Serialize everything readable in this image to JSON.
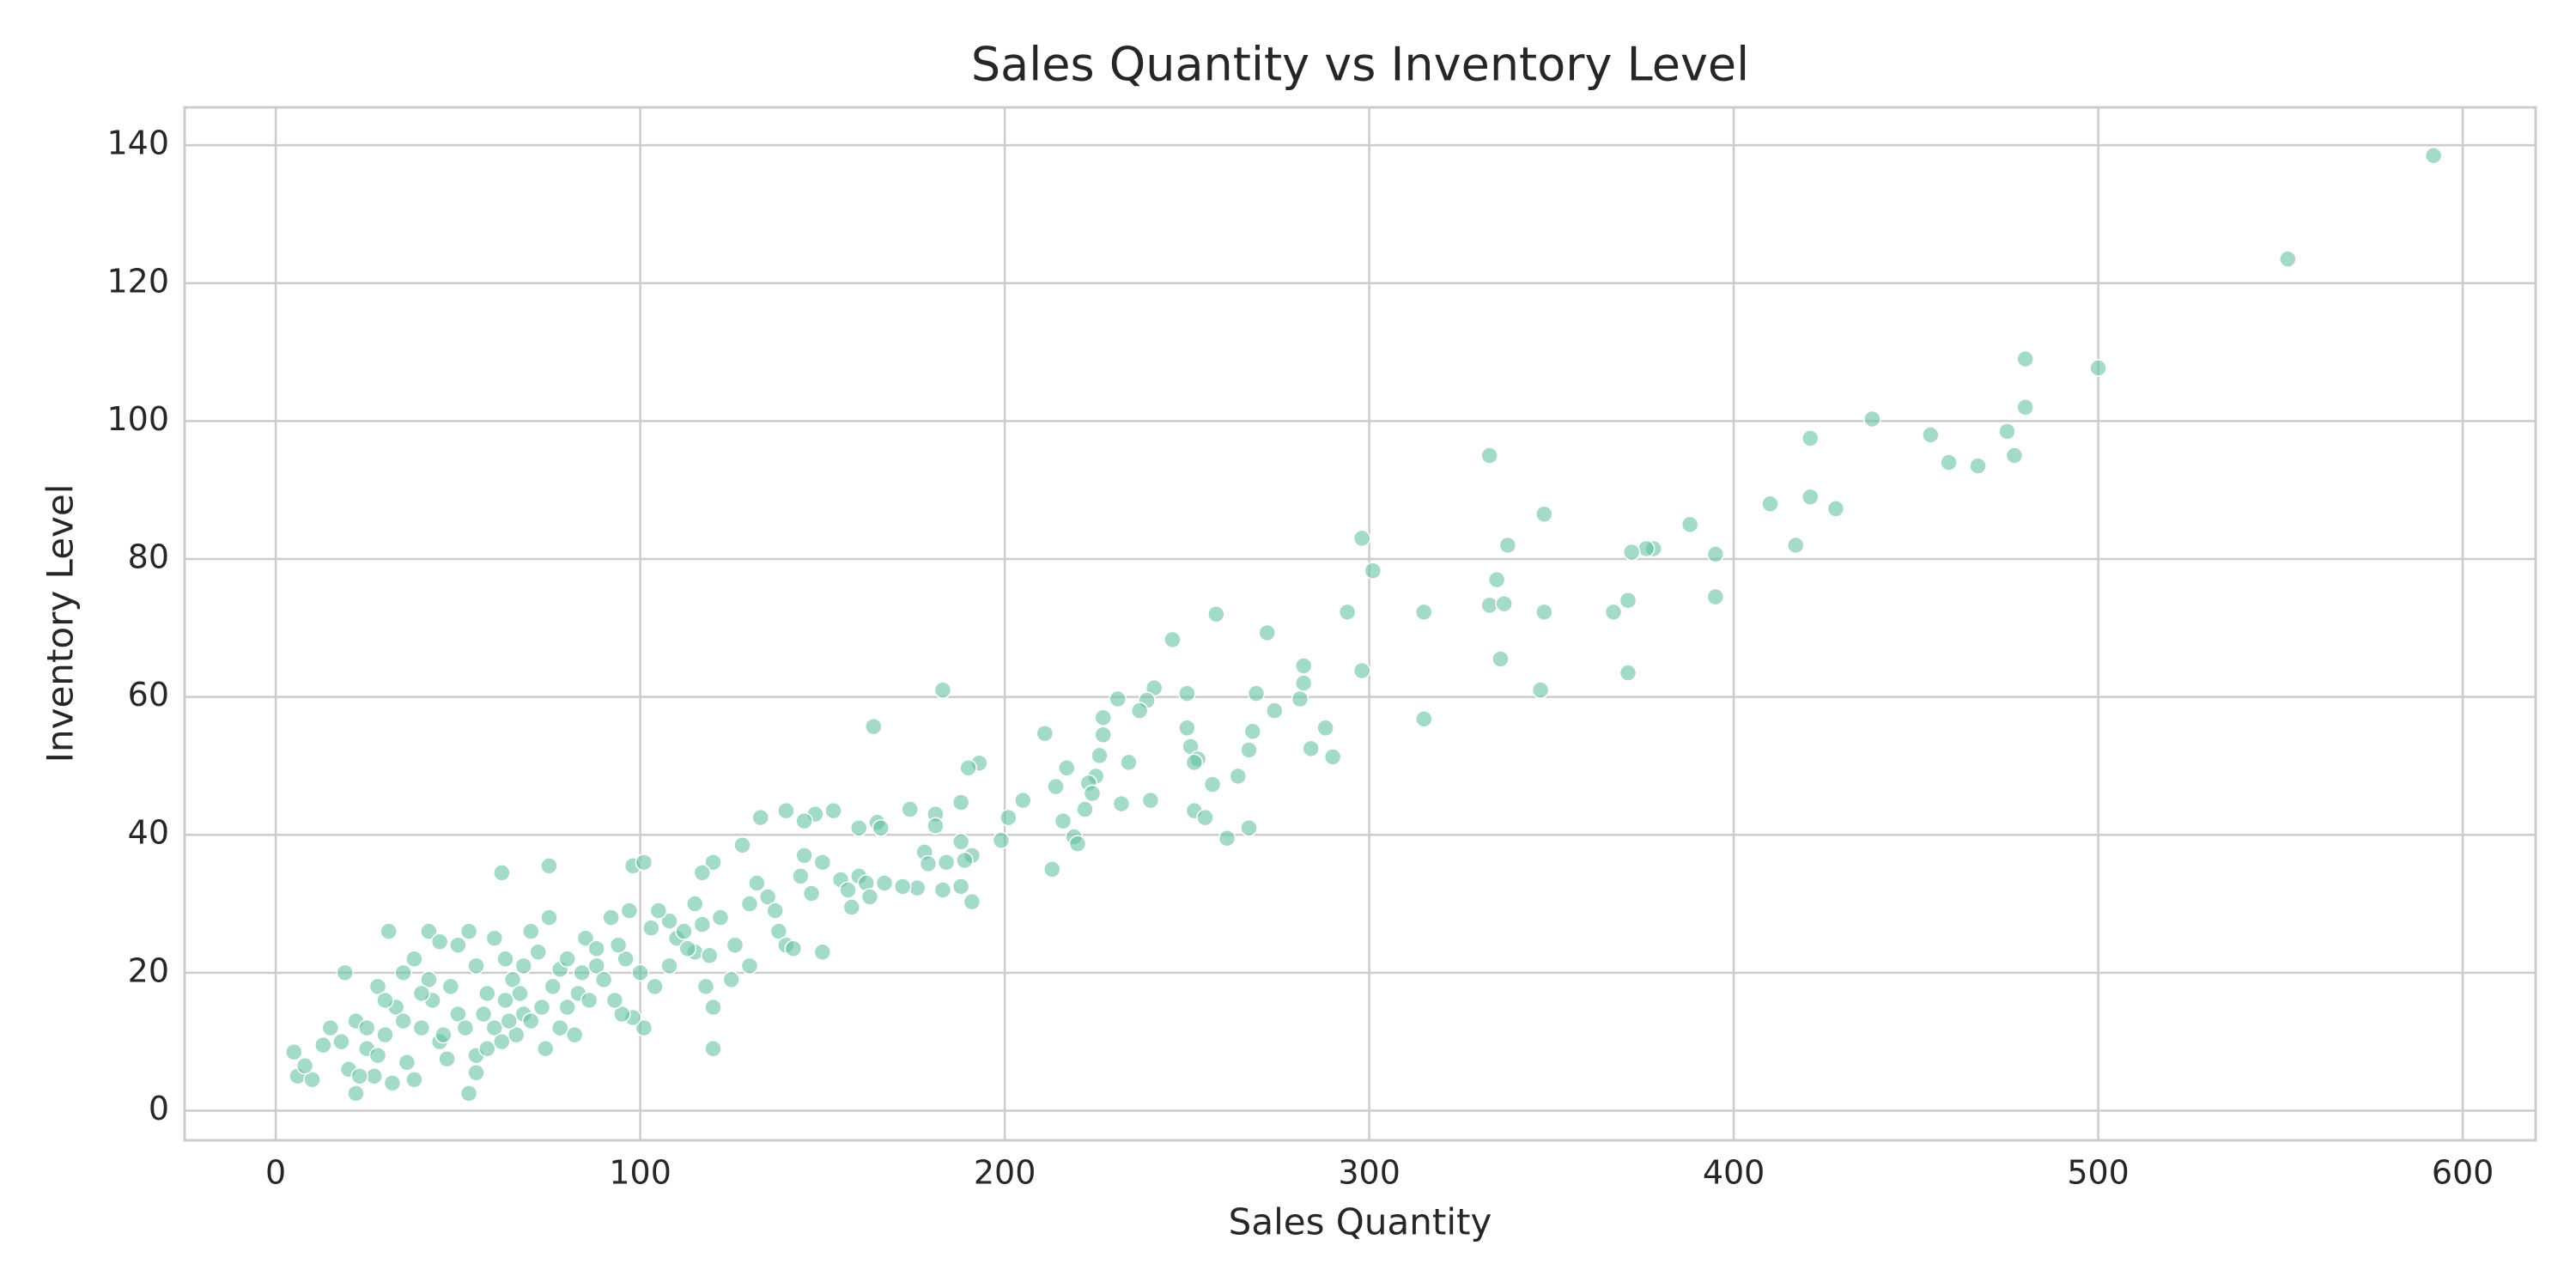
{
  "chart_data": {
    "type": "scatter",
    "title": "Sales Quantity vs Inventory Level",
    "x_label": "Sales Quantity",
    "y_label": "Inventory Level",
    "color": "#66c2a5",
    "grid": true,
    "xlim": [
      -25,
      620
    ],
    "ylim": [
      -4.3,
      145.5
    ],
    "xticks": [
      0,
      100,
      200,
      300,
      400,
      500,
      600
    ],
    "yticks": [
      0,
      20,
      40,
      60,
      80,
      100,
      120,
      140
    ],
    "x": [
      592,
      552,
      500,
      480,
      480,
      475,
      477,
      467,
      459,
      454,
      438,
      421,
      421,
      428,
      417,
      410,
      388,
      395,
      395,
      378,
      376,
      372,
      371,
      367,
      371,
      348,
      348,
      347,
      338,
      335,
      333,
      337,
      336,
      333,
      315,
      315,
      298,
      301,
      294,
      298,
      282,
      282,
      281,
      288,
      284,
      290,
      272,
      258,
      269,
      274,
      268,
      267,
      264,
      267,
      261,
      246,
      241,
      239,
      237,
      250,
      250,
      251,
      253,
      252,
      257,
      252,
      255,
      240,
      231,
      227,
      227,
      234,
      226,
      225,
      223,
      224,
      222,
      232,
      219,
      220,
      216,
      211,
      217,
      214,
      213,
      205,
      201,
      199,
      193,
      190,
      183,
      164,
      188,
      181,
      181,
      174,
      165,
      166,
      191,
      188,
      178,
      184,
      179,
      189,
      191,
      188,
      183,
      176,
      62,
      75,
      98,
      101,
      19,
      31,
      42,
      53,
      120,
      120,
      5,
      6,
      10,
      8,
      22,
      140,
      148,
      153,
      133,
      145,
      128,
      120,
      117,
      145,
      147,
      150,
      155,
      158,
      160,
      162,
      157,
      130,
      135,
      138,
      140,
      142,
      130,
      125,
      118,
      115,
      110,
      108,
      105,
      103,
      101,
      98,
      95,
      100,
      96,
      92,
      88,
      85,
      83,
      80,
      78,
      75,
      72,
      70,
      68,
      65,
      63,
      60,
      58,
      55,
      53,
      50,
      48,
      45,
      43,
      40,
      38,
      36,
      33,
      30,
      28,
      25,
      22,
      18,
      15,
      13,
      27,
      32,
      38,
      45,
      50,
      55,
      58,
      62,
      66,
      70,
      74,
      78,
      82,
      86,
      90,
      94,
      97,
      55,
      47,
      35,
      42,
      60,
      67,
      73,
      80,
      88,
      112,
      122,
      126,
      132,
      137,
      144,
      150,
      115,
      108,
      104,
      93,
      20,
      25,
      30,
      35,
      40,
      52,
      57,
      63,
      68,
      76,
      84,
      64,
      46,
      28,
      23,
      117,
      119,
      113,
      160,
      163,
      167,
      172
    ],
    "values": [
      138.5,
      123.5,
      107.7,
      109,
      102,
      98.5,
      95,
      93.5,
      94,
      98,
      100.3,
      97.5,
      89,
      87.3,
      82,
      88,
      85,
      80.7,
      74.5,
      81.5,
      81.5,
      81,
      74,
      72.3,
      63.5,
      86.5,
      72.3,
      61,
      82,
      77,
      73.3,
      73.5,
      65.5,
      95,
      72.3,
      56.8,
      83,
      78.3,
      72.3,
      63.8,
      64.5,
      62,
      59.7,
      55.5,
      52.5,
      51.3,
      69.3,
      72,
      60.5,
      58,
      55,
      52.3,
      48.5,
      41,
      39.5,
      68.3,
      61.3,
      59.5,
      58,
      60.5,
      55.5,
      52.8,
      51,
      50.5,
      47.3,
      43.5,
      42.5,
      45,
      59.7,
      57,
      54.5,
      50.5,
      51.5,
      48.5,
      47.5,
      46,
      43.7,
      44.5,
      39.7,
      38.7,
      42,
      54.7,
      49.7,
      47,
      35,
      45,
      42.5,
      39.2,
      50.4,
      49.7,
      61,
      55.7,
      44.7,
      43,
      41.3,
      43.7,
      41.8,
      41,
      37,
      39,
      37.5,
      36,
      35.8,
      36.3,
      30.3,
      32.5,
      32,
      32.3,
      34.5,
      35.5,
      35.5,
      36,
      20,
      26,
      26,
      2.5,
      9,
      15,
      8.5,
      5,
      4.5,
      6.5,
      2.5,
      43.5,
      43,
      43.5,
      42.5,
      42,
      38.5,
      36,
      34.5,
      37,
      31.5,
      23,
      33.5,
      29.5,
      34,
      33,
      32,
      30,
      31,
      26,
      24,
      23.5,
      21,
      19,
      18,
      23,
      25,
      27.5,
      29,
      26.5,
      12,
      13.5,
      14,
      20,
      22,
      28,
      21,
      25,
      17,
      15,
      20.5,
      28,
      23,
      26,
      14,
      19,
      22,
      12,
      17,
      21,
      26,
      14,
      18,
      10,
      16,
      12,
      22,
      7,
      15,
      11,
      18,
      9,
      13,
      10,
      12,
      9.5,
      5,
      4,
      4.5,
      24.5,
      24,
      8,
      9,
      10,
      11,
      13,
      9,
      12,
      11,
      16,
      19,
      24,
      29,
      5.5,
      7.5,
      13,
      19,
      25,
      17,
      15,
      22,
      23.5,
      26,
      28,
      24,
      33,
      29,
      34,
      36,
      30,
      21,
      18,
      16,
      6,
      12,
      16,
      20,
      17,
      12,
      14,
      16,
      21,
      18,
      20,
      13,
      11,
      8,
      5,
      27,
      22.5,
      23.5,
      41,
      31,
      33,
      32.5
    ]
  }
}
